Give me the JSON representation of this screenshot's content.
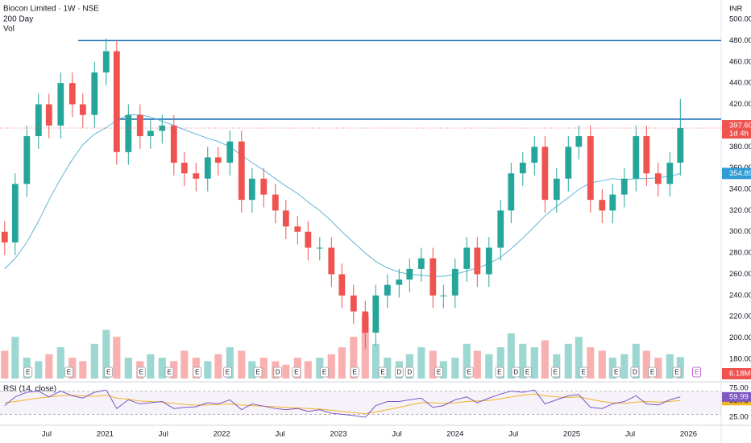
{
  "chart_data": {
    "type": "candlestick",
    "title": "Biocon Limited · 1W · NSE",
    "currency": "INR",
    "xlim": [
      2020.1,
      2026.28
    ],
    "xticks": [
      {
        "value": 2020.5,
        "label": "Jul"
      },
      2021,
      {
        "value": 2021.5,
        "label": "Jul"
      },
      2022,
      {
        "value": 2022.5,
        "label": "Jul"
      },
      2023,
      {
        "value": 2023.5,
        "label": "Jul"
      },
      2024,
      {
        "value": 2024.5,
        "label": "Jul"
      },
      2025,
      {
        "value": 2025.5,
        "label": "Jul"
      },
      2026
    ],
    "ylim": [
      159.5,
      518.2
    ],
    "yticks": [
      {
        "value": 180,
        "label": "180.00"
      },
      {
        "value": 200,
        "label": "200.00"
      },
      {
        "value": 220,
        "label": "220.00"
      },
      {
        "value": 240,
        "label": "240.00"
      },
      {
        "value": 260,
        "label": "260.00"
      },
      {
        "value": 280,
        "label": "280.00"
      },
      {
        "value": 300,
        "label": "300.00"
      },
      {
        "value": 320,
        "label": "320.00"
      },
      {
        "value": 340,
        "label": "340.00"
      },
      {
        "value": 360,
        "label": "360.00"
      },
      {
        "value": 380,
        "label": "380.00"
      },
      {
        "value": 400,
        "label": "400.00"
      },
      {
        "value": 420,
        "label": "420.00"
      },
      {
        "value": 440,
        "label": "440.00"
      },
      {
        "value": 460,
        "label": "460.00"
      },
      {
        "value": 480,
        "label": "480.00"
      },
      {
        "value": 500,
        "label": "500.00"
      }
    ],
    "up_color": "#26a69a",
    "down_color": "#ef5350",
    "candles": {
      "x": [
        2020.14,
        2020.23,
        2020.33,
        2020.43,
        2020.52,
        2020.62,
        2020.72,
        2020.81,
        2020.91,
        2021.01,
        2021.1,
        2021.2,
        2021.3,
        2021.39,
        2021.49,
        2021.59,
        2021.68,
        2021.78,
        2021.88,
        2021.97,
        2022.07,
        2022.17,
        2022.26,
        2022.36,
        2022.46,
        2022.55,
        2022.65,
        2022.74,
        2022.84,
        2022.94,
        2023.03,
        2023.13,
        2023.23,
        2023.32,
        2023.42,
        2023.52,
        2023.61,
        2023.71,
        2023.81,
        2023.9,
        2024.0,
        2024.1,
        2024.19,
        2024.29,
        2024.39,
        2024.48,
        2024.58,
        2024.68,
        2024.77,
        2024.87,
        2024.97,
        2025.06,
        2025.16,
        2025.26,
        2025.35,
        2025.45,
        2025.55,
        2025.64,
        2025.74,
        2025.84,
        2025.93
      ],
      "open": [
        300,
        290,
        345,
        390,
        420,
        400,
        440,
        420,
        410,
        450,
        470,
        375,
        410,
        390,
        395,
        400,
        365,
        355,
        350,
        370,
        365,
        385,
        330,
        350,
        335,
        320,
        305,
        300,
        285,
        285,
        260,
        240,
        225,
        205,
        240,
        250,
        255,
        265,
        275,
        240,
        240,
        265,
        285,
        260,
        285,
        320,
        355,
        365,
        380,
        330,
        350,
        380,
        390,
        330,
        320,
        335,
        350,
        390,
        355,
        345,
        365
      ],
      "high": [
        310,
        355,
        400,
        430,
        430,
        450,
        450,
        430,
        460,
        482,
        480,
        420,
        420,
        405,
        410,
        410,
        375,
        365,
        380,
        380,
        395,
        395,
        360,
        360,
        345,
        330,
        315,
        310,
        295,
        295,
        270,
        250,
        235,
        250,
        260,
        265,
        275,
        285,
        285,
        250,
        275,
        295,
        295,
        295,
        330,
        365,
        375,
        390,
        390,
        360,
        390,
        400,
        400,
        340,
        345,
        360,
        400,
        400,
        365,
        375,
        425
      ],
      "low": [
        278,
        278,
        333,
        378,
        388,
        388,
        408,
        398,
        398,
        438,
        363,
        363,
        378,
        378,
        383,
        353,
        343,
        338,
        338,
        353,
        353,
        318,
        318,
        323,
        308,
        293,
        288,
        273,
        273,
        248,
        228,
        213,
        190,
        193,
        228,
        238,
        243,
        253,
        228,
        228,
        228,
        253,
        248,
        248,
        273,
        308,
        343,
        353,
        318,
        318,
        338,
        368,
        318,
        308,
        308,
        323,
        338,
        343,
        333,
        333,
        353
      ],
      "close": [
        290,
        345,
        390,
        420,
        400,
        440,
        420,
        410,
        450,
        470,
        375,
        410,
        390,
        395,
        400,
        365,
        355,
        350,
        370,
        365,
        385,
        330,
        350,
        335,
        320,
        305,
        300,
        285,
        285,
        260,
        240,
        225,
        205,
        240,
        250,
        255,
        265,
        275,
        240,
        240,
        265,
        285,
        260,
        285,
        320,
        355,
        365,
        380,
        330,
        350,
        380,
        390,
        330,
        320,
        335,
        350,
        390,
        355,
        345,
        365,
        397.6
      ],
      "last_close_label": "397.60",
      "countdown": "1d 4h"
    },
    "ma": {
      "name": "200 Day",
      "color": "#5eb7d6",
      "values": [
        265,
        275,
        290,
        310,
        330,
        350,
        368,
        382,
        392,
        398,
        405,
        410,
        410,
        408,
        404,
        400,
        396,
        392,
        388,
        385,
        380,
        372,
        365,
        358,
        350,
        343,
        336,
        328,
        320,
        310,
        300,
        290,
        280,
        272,
        266,
        262,
        260,
        259,
        258,
        258,
        260,
        263,
        266,
        270,
        276,
        284,
        294,
        305,
        315,
        324,
        332,
        340,
        346,
        348,
        350,
        349,
        350,
        350,
        351,
        352,
        354.89
      ]
    },
    "hlines": {
      "color": "#1e6fb5",
      "values": [
        480,
        406
      ],
      "from": [
        2020.77,
        2021.08
      ]
    },
    "volume": {
      "name": "Vol",
      "ylim": [
        0,
        22
      ],
      "values": [
        8,
        12,
        6,
        5,
        7,
        9,
        6,
        5,
        10,
        14,
        12,
        6,
        5,
        7,
        6,
        5,
        8,
        6,
        5,
        7,
        9,
        8,
        5,
        6,
        5,
        4,
        6,
        5,
        6,
        7,
        9,
        12,
        18,
        10,
        6,
        5,
        7,
        9,
        8,
        5,
        6,
        10,
        8,
        7,
        9,
        13,
        10,
        9,
        11,
        7,
        10,
        12,
        9,
        8,
        6,
        7,
        10,
        8,
        6,
        7,
        6.18
      ],
      "last_label": "6.18M"
    },
    "events": {
      "x": [
        2020.34,
        2020.69,
        2021.03,
        2021.31,
        2021.55,
        2021.79,
        2022.05,
        2022.31,
        2022.48,
        2022.64,
        2022.88,
        2023.14,
        2023.38,
        2023.52,
        2023.61,
        2023.86,
        2024.12,
        2024.38,
        2024.52,
        2024.62,
        2024.86,
        2025.1,
        2025.38,
        2025.54,
        2025.69,
        2025.9,
        2026.07
      ],
      "labels": [
        "E",
        "E",
        "E",
        "E",
        "E",
        "E",
        "E",
        "E",
        "D",
        "E",
        "E",
        "E",
        "E",
        "D",
        "D",
        "E",
        "E",
        "E",
        "D",
        "E",
        "E",
        "E",
        "E",
        "D",
        "E",
        "E",
        "E"
      ]
    },
    "rsi": {
      "name": "RSI (14, close)",
      "ylim": [
        12.5,
        83.3
      ],
      "yticks": [
        {
          "value": 75,
          "label": "75.00"
        },
        {
          "value": 25,
          "label": "25.00"
        }
      ],
      "bands": [
        30,
        70
      ],
      "color": "#7e57c2",
      "ma_color": "#f0b429",
      "values": [
        45,
        60,
        68,
        70,
        60,
        70,
        62,
        58,
        68,
        72,
        40,
        55,
        48,
        50,
        52,
        40,
        42,
        43,
        50,
        48,
        55,
        38,
        48,
        44,
        40,
        38,
        40,
        35,
        38,
        32,
        30,
        28,
        25,
        45,
        52,
        52,
        55,
        58,
        42,
        45,
        55,
        60,
        50,
        58,
        65,
        70,
        68,
        72,
        48,
        55,
        62,
        64,
        42,
        40,
        48,
        52,
        62,
        48,
        46,
        55,
        59.99
      ],
      "ma_values": [
        50,
        52,
        55,
        58,
        60,
        62,
        63,
        62,
        61,
        63,
        58,
        56,
        53,
        52,
        51,
        49,
        47,
        46,
        46,
        47,
        48,
        46,
        45,
        44,
        43,
        42,
        41,
        40,
        39,
        37,
        35,
        33,
        31,
        34,
        38,
        42,
        46,
        50,
        50,
        49,
        50,
        52,
        53,
        54,
        57,
        60,
        63,
        65,
        62,
        60,
        59,
        60,
        56,
        52,
        50,
        49,
        51,
        52,
        51,
        52,
        53.75
      ]
    }
  }
}
